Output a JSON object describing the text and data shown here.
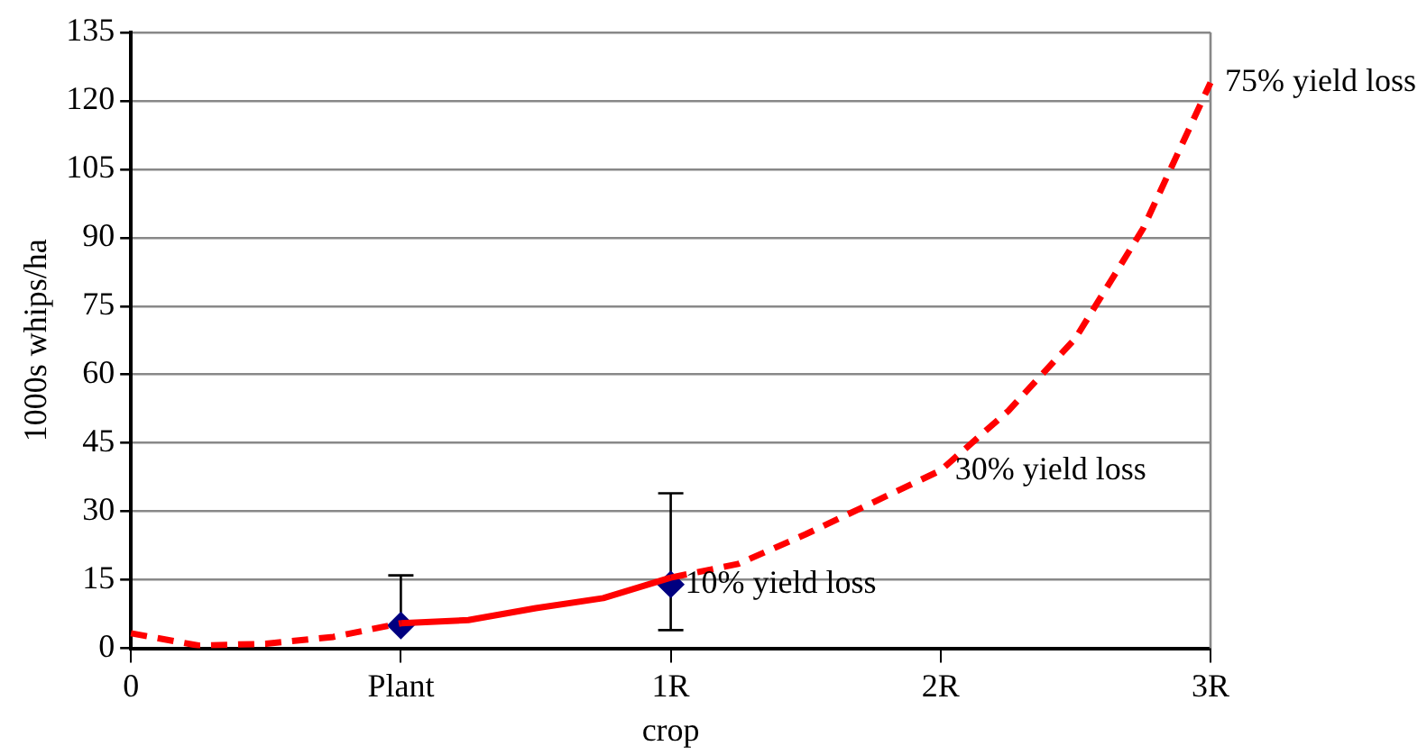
{
  "chart_data": {
    "type": "line",
    "xlabel": "crop",
    "ylabel": "1000s whips/ha",
    "categories": [
      "0",
      null,
      null,
      null,
      "Plant",
      null,
      null,
      null,
      "1R",
      null,
      null,
      null,
      "2R",
      null,
      null,
      null,
      "3R"
    ],
    "ylim": [
      0,
      135
    ],
    "yticks": [
      0,
      15,
      30,
      45,
      60,
      75,
      90,
      105,
      120,
      135
    ],
    "grid": "y",
    "legend": false,
    "series": [
      {
        "line_style": "dashed",
        "color": "#ff0000",
        "values": [
          3.3,
          0.6,
          1.0,
          2.5,
          5.5,
          null,
          null,
          null,
          null,
          null,
          null,
          null,
          null,
          null,
          null,
          null,
          null
        ]
      },
      {
        "line_style": "solid",
        "color": "#ff0000",
        "values": [
          null,
          null,
          null,
          null,
          5.5,
          6.2,
          8.8,
          11,
          15.5,
          null,
          null,
          null,
          null,
          null,
          null,
          null,
          null
        ]
      },
      {
        "line_style": "dashed",
        "color": "#ff0000",
        "values": [
          null,
          null,
          null,
          null,
          null,
          null,
          null,
          null,
          15.5,
          18.5,
          25,
          32,
          39,
          52,
          68,
          92,
          124
        ]
      },
      {
        "type": "scatter",
        "marker": "diamond",
        "color": "#000080",
        "values": [
          null,
          null,
          null,
          null,
          5,
          null,
          null,
          null,
          14,
          null,
          null,
          null,
          null,
          null,
          null,
          null,
          null
        ],
        "errors": [
          null,
          null,
          null,
          null,
          [
            5,
            16
          ],
          null,
          null,
          null,
          [
            4,
            34
          ],
          null,
          null,
          null,
          null,
          null,
          null,
          null,
          null
        ]
      }
    ],
    "annotations": [
      {
        "text": "10% yield loss",
        "x": "1R",
        "y": 14
      },
      {
        "text": "30% yield loss",
        "x": "2R",
        "y": 39
      },
      {
        "text": "75% yield loss",
        "x": "3R",
        "y": 124
      }
    ]
  }
}
